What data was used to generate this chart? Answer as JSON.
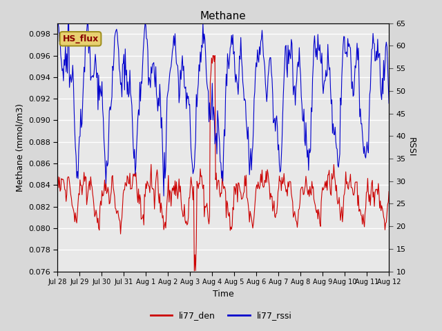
{
  "title": "Methane",
  "xlabel": "Time",
  "ylabel_left": "Methane (mmol/m3)",
  "ylabel_right": "RSSI",
  "ylim_left": [
    0.076,
    0.099
  ],
  "ylim_right": [
    10,
    65
  ],
  "yticks_left": [
    0.076,
    0.078,
    0.08,
    0.082,
    0.084,
    0.086,
    0.088,
    0.09,
    0.092,
    0.094,
    0.096,
    0.098
  ],
  "yticks_right": [
    10,
    15,
    20,
    25,
    30,
    35,
    40,
    45,
    50,
    55,
    60,
    65
  ],
  "bg_color": "#d8d8d8",
  "plot_bg_color": "#e8e8e8",
  "grid_color": "#ffffff",
  "line_color_red": "#cc0000",
  "line_color_blue": "#0000cc",
  "legend_label_red": "li77_den",
  "legend_label_blue": "li77_rssi",
  "annotation_text": "HS_flux",
  "annotation_bg": "#e8d070",
  "annotation_border": "#a09020",
  "xtick_labels": [
    "Jul 28",
    "Jul 29",
    "Jul 30",
    "Jul 31",
    "Aug 1",
    "Aug 2",
    "Aug 3",
    "Aug 4",
    "Aug 5",
    "Aug 6",
    "Aug 7",
    "Aug 8",
    "Aug 9",
    "Aug 10",
    "Aug 11",
    "Aug 12"
  ],
  "n_points": 500,
  "seed": 42
}
